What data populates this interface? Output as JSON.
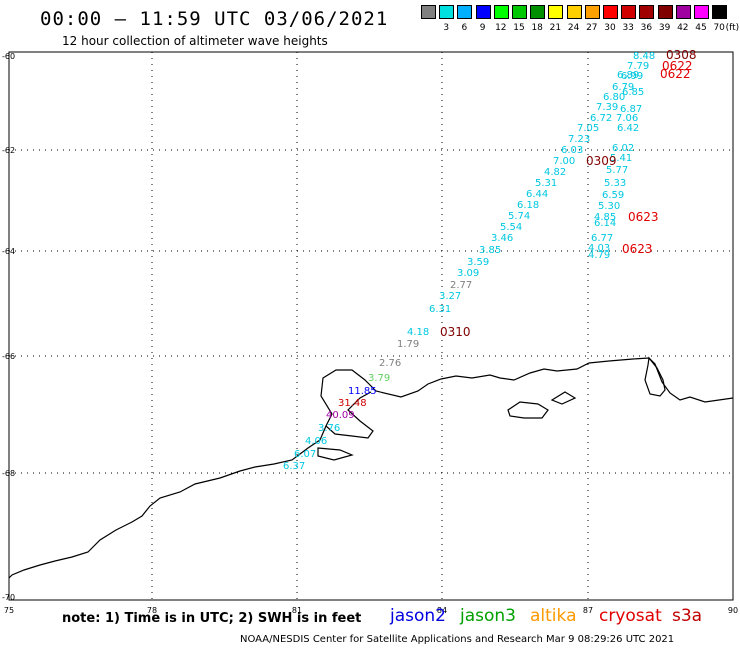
{
  "header": {
    "title": "00:00 – 11:59 UTC 03/06/2021",
    "subtitle": "12 hour collection of altimeter wave heights"
  },
  "legend": {
    "unit": "(ft)",
    "bins": [
      {
        "label": "",
        "color": "#808080"
      },
      {
        "label": "3",
        "color": "#00e0e0"
      },
      {
        "label": "6",
        "color": "#00b0ff"
      },
      {
        "label": "9",
        "color": "#0000ff"
      },
      {
        "label": "12",
        "color": "#00ff00"
      },
      {
        "label": "15",
        "color": "#00c800"
      },
      {
        "label": "18",
        "color": "#009000"
      },
      {
        "label": "21",
        "color": "#ffff00"
      },
      {
        "label": "24",
        "color": "#ffd000"
      },
      {
        "label": "27",
        "color": "#ffa000"
      },
      {
        "label": "30",
        "color": "#ff0000"
      },
      {
        "label": "33",
        "color": "#d00000"
      },
      {
        "label": "36",
        "color": "#a00000"
      },
      {
        "label": "39",
        "color": "#800000"
      },
      {
        "label": "42",
        "color": "#a000a0"
      },
      {
        "label": "45",
        "color": "#ff00ff"
      },
      {
        "label": "70",
        "color": "#000000"
      }
    ]
  },
  "axes": {
    "lon_labels": [
      "75",
      "78",
      "81",
      "84",
      "87",
      "90"
    ],
    "lat_labels": [
      "-60",
      "-62",
      "-64",
      "-66",
      "-68",
      "-70"
    ]
  },
  "tracks": {
    "labels": [
      {
        "text": "0308",
        "color": "#800000"
      },
      {
        "text": "0622",
        "color": "#e00000"
      },
      {
        "text": "0622",
        "color": "#e00000"
      },
      {
        "text": "0309",
        "color": "#800000"
      },
      {
        "text": "0623",
        "color": "#e00000"
      },
      {
        "text": "0623",
        "color": "#e00000"
      },
      {
        "text": "0310",
        "color": "#800000"
      }
    ],
    "values": [
      {
        "text": "8.48",
        "color": "#00c8e0"
      },
      {
        "text": "7.79",
        "color": "#00c8e0"
      },
      {
        "text": "6.99",
        "color": "#00c8e0"
      },
      {
        "text": "6.89",
        "color": "#00c8e0"
      },
      {
        "text": "6.79",
        "color": "#00c8e0"
      },
      {
        "text": "6.85",
        "color": "#00c8e0"
      },
      {
        "text": "6.80",
        "color": "#00c8e0"
      },
      {
        "text": "7.39",
        "color": "#00c8e0"
      },
      {
        "text": "6.72",
        "color": "#00c8e0"
      },
      {
        "text": "6.87",
        "color": "#00c8e0"
      },
      {
        "text": "7.06",
        "color": "#00c8e0"
      },
      {
        "text": "7.05",
        "color": "#00c8e0"
      },
      {
        "text": "6.42",
        "color": "#00c8e0"
      },
      {
        "text": "7.23",
        "color": "#00c8e0"
      },
      {
        "text": "6.03",
        "color": "#00c8e0"
      },
      {
        "text": "6.02",
        "color": "#00c8e0"
      },
      {
        "text": "7.00",
        "color": "#00c8e0"
      },
      {
        "text": "5.41",
        "color": "#00c8e0"
      },
      {
        "text": "4.82",
        "color": "#00c8e0"
      },
      {
        "text": "5.77",
        "color": "#00c8e0"
      },
      {
        "text": "5.31",
        "color": "#00c8e0"
      },
      {
        "text": "5.33",
        "color": "#00c8e0"
      },
      {
        "text": "6.44",
        "color": "#00c8e0"
      },
      {
        "text": "6.59",
        "color": "#00c8e0"
      },
      {
        "text": "6.18",
        "color": "#00c8e0"
      },
      {
        "text": "5.30",
        "color": "#00c8e0"
      },
      {
        "text": "5.74",
        "color": "#00c8e0"
      },
      {
        "text": "4.85",
        "color": "#00c8e0"
      },
      {
        "text": "6.14",
        "color": "#00c8e0"
      },
      {
        "text": "5.54",
        "color": "#00c8e0"
      },
      {
        "text": "3.46",
        "color": "#00c8e0"
      },
      {
        "text": "6.77",
        "color": "#00c8e0"
      },
      {
        "text": "3.85",
        "color": "#00c8e0"
      },
      {
        "text": "4.03",
        "color": "#00c8e0"
      },
      {
        "text": "4.79",
        "color": "#00c8e0"
      },
      {
        "text": "3.59",
        "color": "#00c8e0"
      },
      {
        "text": "3.09",
        "color": "#00c8e0"
      },
      {
        "text": "2.77",
        "color": "#808080"
      },
      {
        "text": "3.27",
        "color": "#00c8e0"
      },
      {
        "text": "6.31",
        "color": "#00c8e0"
      },
      {
        "text": "4.18",
        "color": "#00c8e0"
      },
      {
        "text": "1.79",
        "color": "#808080"
      },
      {
        "text": "2.76",
        "color": "#808080"
      },
      {
        "text": "3.79",
        "color": "#60d060"
      },
      {
        "text": "11.85",
        "color": "#0000ff"
      },
      {
        "text": "31.48",
        "color": "#d00000"
      },
      {
        "text": "40.09",
        "color": "#a000a0"
      },
      {
        "text": "3.76",
        "color": "#00c8e0"
      },
      {
        "text": "4.06",
        "color": "#00c8e0"
      },
      {
        "text": "6.07",
        "color": "#00c8e0"
      },
      {
        "text": "6.37",
        "color": "#00c8e0"
      }
    ]
  },
  "footer": {
    "note": "note: 1) Time is in UTC; 2) SWH is in feet",
    "satellites": [
      {
        "name": "jason2",
        "color": "#0000e0"
      },
      {
        "name": "jason3",
        "color": "#00a000"
      },
      {
        "name": "altika",
        "color": "#ff9900"
      },
      {
        "name": "cryosat",
        "color": "#e00000"
      },
      {
        "name": "s3a",
        "color": "#c00000"
      }
    ],
    "credit": "NOAA/NESDIS Center for Satellite Applications and Research    Mar  9 08:29:26 UTC 2021"
  }
}
